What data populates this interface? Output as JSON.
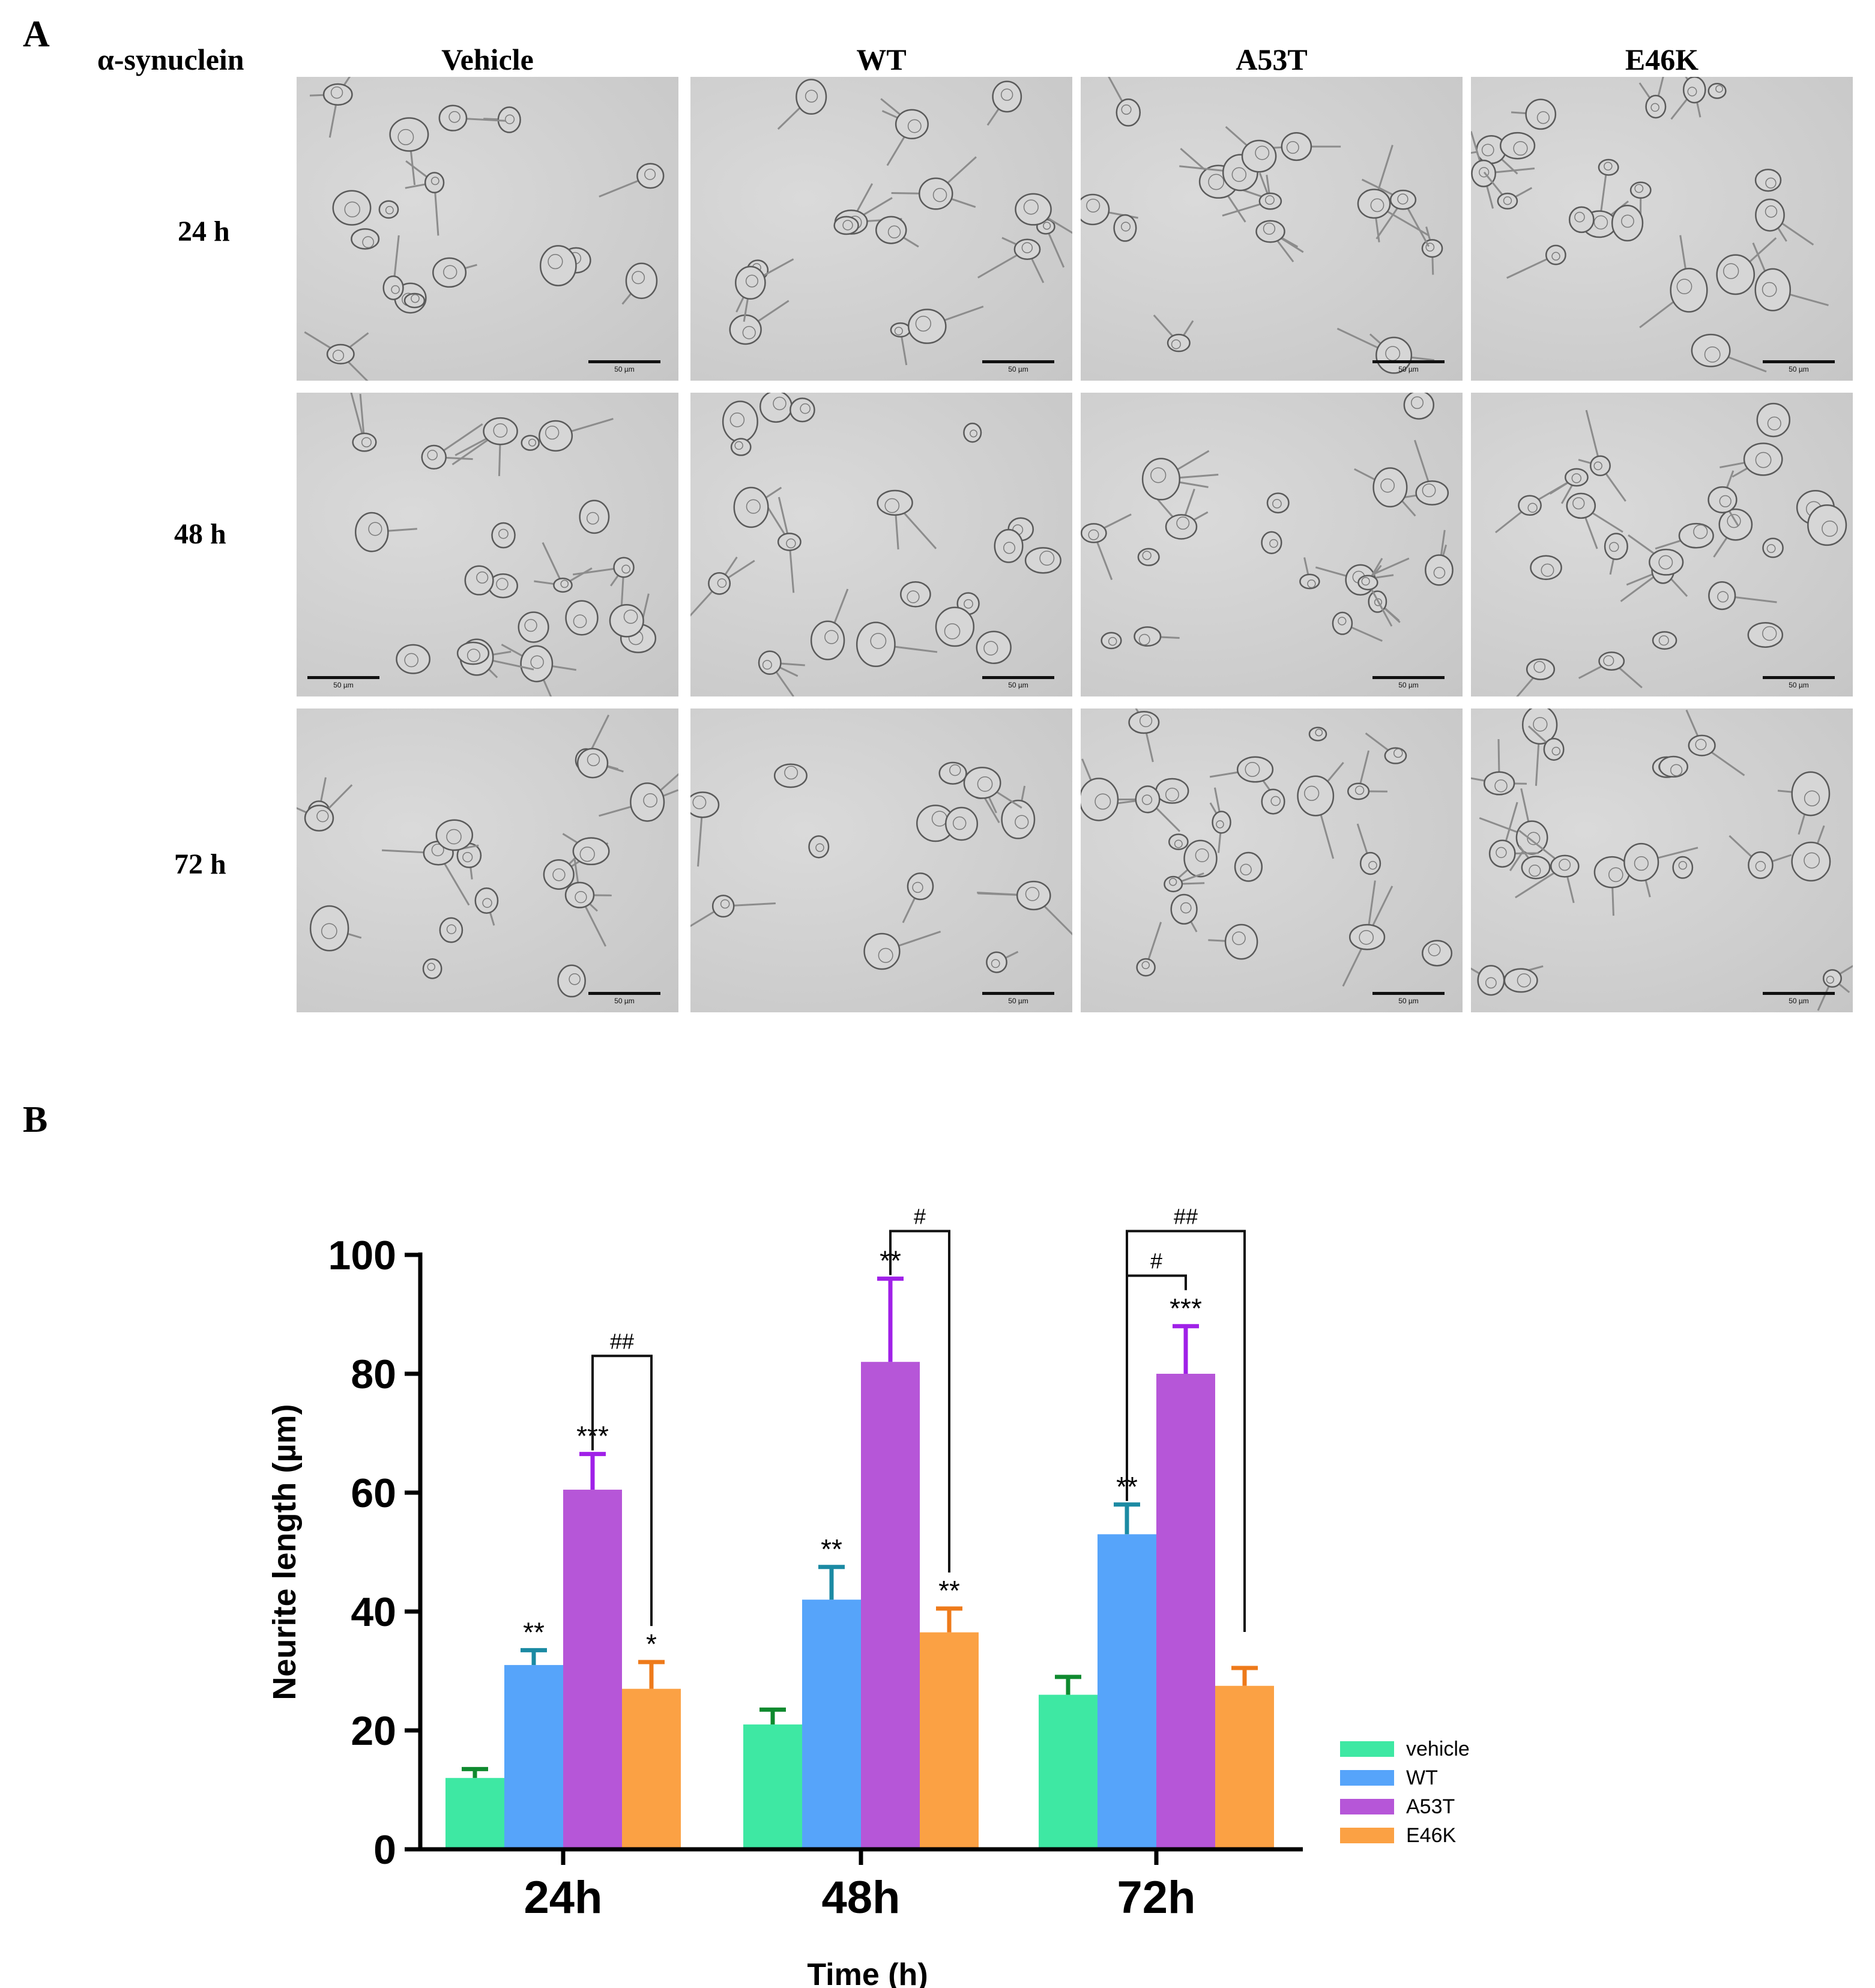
{
  "panel_a": {
    "letter": "A",
    "row_label_header": "α-synuclein",
    "columns": [
      "Vehicle",
      "WT",
      "A53T",
      "E46K"
    ],
    "rows": [
      "24 h",
      "48 h",
      "72 h"
    ],
    "scale_label": "50 µm"
  },
  "panel_b": {
    "letter": "B"
  },
  "chart_data": {
    "type": "bar",
    "categories": [
      "24h",
      "48h",
      "72h"
    ],
    "xlabel": "Time (h)",
    "ylabel": "Neurite length (µm)",
    "ylim": [
      0,
      100
    ],
    "yticks": [
      0,
      20,
      40,
      60,
      80,
      100
    ],
    "legend_position": "right",
    "series": [
      {
        "name": "vehicle",
        "color": "#3ee8a3",
        "errcolor": "#0f8a2f",
        "values": [
          12,
          21,
          26
        ],
        "errors": [
          1.5,
          2.5,
          3
        ],
        "sig": [
          "",
          "",
          ""
        ]
      },
      {
        "name": "WT",
        "color": "#56a4fa",
        "errcolor": "#1b8aa3",
        "values": [
          31,
          42,
          53
        ],
        "errors": [
          2.5,
          5.5,
          5
        ],
        "sig": [
          "**",
          "**",
          "**"
        ]
      },
      {
        "name": "A53T",
        "color": "#b656d8",
        "errcolor": "#a020e8",
        "values": [
          60.5,
          82,
          80
        ],
        "errors": [
          6,
          14,
          8
        ],
        "sig": [
          "***",
          "**",
          "***"
        ]
      },
      {
        "name": "E46K",
        "color": "#fba144",
        "errcolor": "#ee7a1a",
        "values": [
          27,
          36.5,
          27.5
        ],
        "errors": [
          4.5,
          4,
          3
        ],
        "sig": [
          "*",
          "**",
          ""
        ]
      }
    ],
    "brackets": [
      {
        "group": 0,
        "from": 2,
        "to": 3,
        "level": 83,
        "label": "##"
      },
      {
        "group": 1,
        "from": 2,
        "to": 3,
        "level": 104,
        "label": "#"
      },
      {
        "group": 2,
        "from": 1,
        "to": 2,
        "level": 96.5,
        "label": "#"
      },
      {
        "group": 2,
        "from": 1,
        "to": 3,
        "level": 104,
        "label": "##"
      }
    ]
  }
}
